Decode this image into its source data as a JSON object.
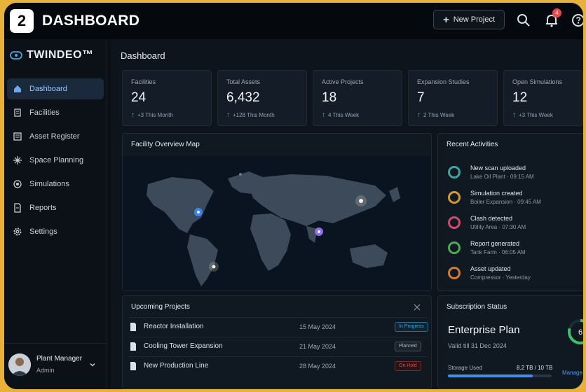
{
  "header": {
    "step": "2",
    "title": "DASHBOARD",
    "new_project_label": "New Project",
    "notification_count": "4"
  },
  "sidebar": {
    "brand": "TWINDEO™",
    "items": [
      {
        "label": "Dashboard",
        "icon": "home-icon",
        "active": true
      },
      {
        "label": "Facilities",
        "icon": "building-icon"
      },
      {
        "label": "Asset Register",
        "icon": "register-icon"
      },
      {
        "label": "Space Planning",
        "icon": "space-icon"
      },
      {
        "label": "Simulations",
        "icon": "simulation-icon"
      },
      {
        "label": "Reports",
        "icon": "report-icon"
      },
      {
        "label": "Settings",
        "icon": "gear-icon"
      }
    ],
    "user": {
      "name": "Plant Manager",
      "role": "Admin"
    }
  },
  "main": {
    "title": "Dashboard",
    "stats": [
      {
        "label": "Facilities",
        "value": "24",
        "trend": "+3 This Month"
      },
      {
        "label": "Total Assets",
        "value": "6,432",
        "trend": "+128 This Month"
      },
      {
        "label": "Active Projects",
        "value": "18",
        "trend": "4 This Week"
      },
      {
        "label": "Expansion Studies",
        "value": "7",
        "trend": "2 This Week"
      },
      {
        "label": "Open Simulations",
        "value": "12",
        "trend": "+3 This Week"
      }
    ],
    "map_title": "Facility Overview Map",
    "activities_title": "Recent Activities",
    "activities": [
      {
        "title": "New scan uploaded",
        "sub": "Lake Oil Plant · 09:15 AM",
        "color": "#3aa6a0"
      },
      {
        "title": "Simulation created",
        "sub": "Boiler Expansion · 09:45 AM",
        "color": "#d39a2b"
      },
      {
        "title": "Clash detected",
        "sub": "Utility Area · 07:30 AM",
        "color": "#d2496a"
      },
      {
        "title": "Report generated",
        "sub": "Tank Farm · 06:05 AM",
        "color": "#4caa55"
      },
      {
        "title": "Asset updated",
        "sub": "Compressor · Yesterday",
        "color": "#d47a2a"
      }
    ],
    "projects_title": "Upcoming Projects",
    "projects": [
      {
        "name": "Reactor Installation",
        "date": "15 May 2024",
        "status": "In Progress",
        "color": "#3aa0d8"
      },
      {
        "name": "Cooling Tower Expansion",
        "date": "21 May 2024",
        "status": "Planned",
        "color": "#aeb8c2"
      },
      {
        "name": "New Production Line",
        "date": "28 May 2024",
        "status": "On Hold",
        "color": "#d84848"
      }
    ],
    "subscription": {
      "title": "Subscription Status",
      "plan": "Enterprise Plan",
      "valid": "Valid till 31 Dec 2024",
      "storage_label": "Storage Used",
      "storage_value": "8.2 TB / 10 TB",
      "storage_fraction": 0.82,
      "gauge_value": "6",
      "manage_label": "Manage"
    }
  }
}
